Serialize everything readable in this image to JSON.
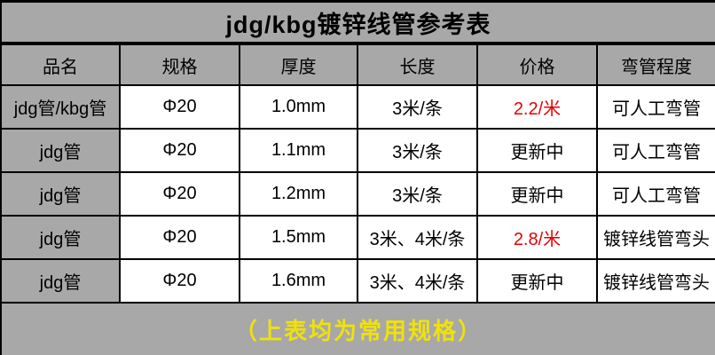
{
  "title": "jdg/kbg镀锌线管参考表",
  "chart_data": {
    "type": "table",
    "title": "jdg/kbg镀锌线管参考表",
    "columns": [
      "品名",
      "规格",
      "厚度",
      "长度",
      "价格",
      "弯管程度"
    ],
    "rows": [
      [
        "jdg管/kbg管",
        "Φ20",
        "1.0mm",
        "3米/条",
        "2.2/米",
        "可人工弯管"
      ],
      [
        "jdg管",
        "Φ20",
        "1.1mm",
        "3米/条",
        "更新中",
        "可人工弯管"
      ],
      [
        "jdg管",
        "Φ20",
        "1.2mm",
        "3米/条",
        "更新中",
        "可人工弯管"
      ],
      [
        "jdg管",
        "Φ20",
        "1.5mm",
        "3米、4米/条",
        "2.8/米",
        "镀锌线管弯头"
      ],
      [
        "jdg管",
        "Φ20",
        "1.6mm",
        "3米、4米/条",
        "更新中",
        "镀锌线管弯头"
      ]
    ],
    "footnote": "（上表均为常用规格）"
  },
  "table": {
    "columns": [
      {
        "key": "product",
        "label": "品名"
      },
      {
        "key": "spec",
        "label": "规格"
      },
      {
        "key": "thickness",
        "label": "厚度"
      },
      {
        "key": "length",
        "label": "长度"
      },
      {
        "key": "price",
        "label": "价格"
      },
      {
        "key": "bend",
        "label": "弯管程度"
      }
    ],
    "rows": [
      {
        "cells": [
          {
            "text": "jdg管/kbg管"
          },
          {
            "text": "Φ20"
          },
          {
            "text": "1.0mm"
          },
          {
            "text": "3米/条"
          },
          {
            "text": "2.2/米",
            "color": "red"
          },
          {
            "text": "可人工弯管"
          }
        ]
      },
      {
        "cells": [
          {
            "text": "jdg管"
          },
          {
            "text": "Φ20"
          },
          {
            "text": "1.1mm"
          },
          {
            "text": "3米/条"
          },
          {
            "text": "更新中"
          },
          {
            "text": "可人工弯管"
          }
        ]
      },
      {
        "cells": [
          {
            "text": "jdg管"
          },
          {
            "text": "Φ20"
          },
          {
            "text": "1.2mm"
          },
          {
            "text": "3米/条"
          },
          {
            "text": "更新中"
          },
          {
            "text": "可人工弯管"
          }
        ]
      },
      {
        "cells": [
          {
            "text": "jdg管"
          },
          {
            "text": "Φ20"
          },
          {
            "text": "1.5mm"
          },
          {
            "text": "3米、4米/条"
          },
          {
            "text": "2.8/米",
            "color": "red"
          },
          {
            "text": "镀锌线管弯头"
          }
        ]
      },
      {
        "cells": [
          {
            "text": "jdg管"
          },
          {
            "text": "Φ20"
          },
          {
            "text": "1.6mm"
          },
          {
            "text": "3米、4米/条"
          },
          {
            "text": "更新中"
          },
          {
            "text": "镀锌线管弯头"
          }
        ]
      }
    ]
  },
  "footer": {
    "note": "（上表均为常用规格）"
  },
  "colors": {
    "background_gray": "#a8a8a8",
    "border_black": "#000000",
    "cell_white": "#ffffff",
    "price_red": "#e60000",
    "footer_yellow": "#f0e10c"
  }
}
